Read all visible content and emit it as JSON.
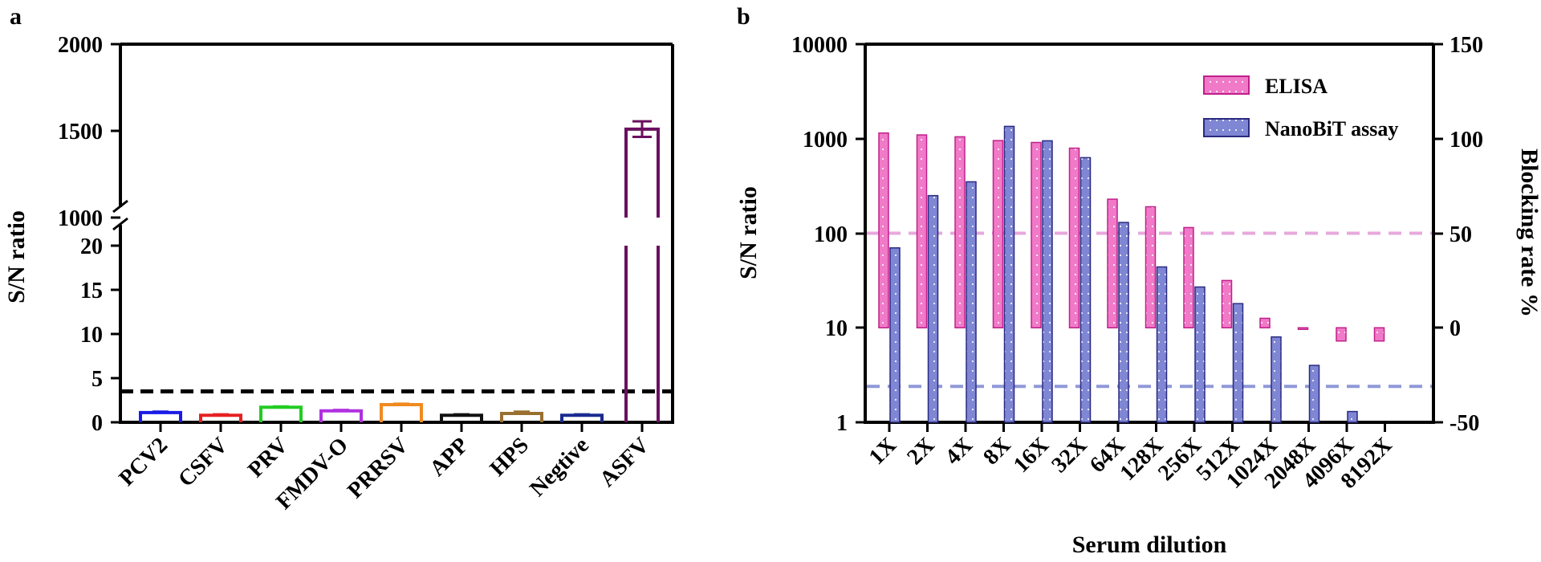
{
  "chart_data": [
    {
      "panel": "a",
      "type": "bar",
      "ylabel": "S/N ratio",
      "broken_axis": true,
      "y_segments": [
        {
          "range": [
            0,
            20
          ],
          "ticks": [
            "0",
            "5",
            "10",
            "15",
            "20"
          ]
        },
        {
          "range": [
            1000,
            2000
          ],
          "ticks": [
            "1000",
            "1500",
            "2000"
          ]
        }
      ],
      "cutoff_line": 3.5,
      "categories": [
        "PCV2",
        "CSFV",
        "PRV",
        "FMDV-O",
        "PRRSV",
        "APP",
        "HPS",
        "Negtive",
        "ASFV"
      ],
      "values": [
        1.1,
        0.8,
        1.7,
        1.3,
        2.0,
        0.8,
        1.0,
        0.8,
        1510
      ],
      "errors": [
        0.1,
        0.1,
        0.1,
        0.1,
        0.1,
        0.1,
        0.2,
        0.1,
        45
      ],
      "colors": [
        "#1a1ae6",
        "#e62020",
        "#22cc22",
        "#b030e0",
        "#f08a20",
        "#111111",
        "#9a7030",
        "#1a2a90",
        "#6a1060"
      ]
    },
    {
      "panel": "b",
      "type": "bar",
      "xlabel": "Serum dilution",
      "ylabel": "S/N ratio",
      "y2label": "Blocking rate %",
      "yscale": "log",
      "ylim": [
        1,
        10000
      ],
      "yticks": [
        "1",
        "10",
        "100",
        "1000",
        "10000"
      ],
      "y2lim": [
        -50,
        150
      ],
      "y2ticks": [
        "-50",
        "0",
        "50",
        "100",
        "150"
      ],
      "categories": [
        "1X",
        "2X",
        "4X",
        "8X",
        "16X",
        "32X",
        "64X",
        "128X",
        "256X",
        "512X",
        "1024X",
        "2048X",
        "4096X",
        "8192X"
      ],
      "series": [
        {
          "name": "ELISA",
          "axis": "right",
          "color": "#f07ac8",
          "values": [
            103,
            102,
            101,
            99,
            98,
            95,
            68,
            64,
            53,
            25,
            5,
            0,
            -7,
            -7
          ]
        },
        {
          "name": "NanoBiT assay",
          "axis": "left",
          "color": "#7f86d4",
          "values": [
            70,
            250,
            350,
            1350,
            950,
            630,
            130,
            44,
            27,
            18,
            8,
            4,
            1.3,
            null
          ]
        }
      ],
      "threshold_lines": [
        {
          "axis": "right",
          "value": 50,
          "color": "#e8a8dc"
        },
        {
          "axis": "right",
          "value": -31,
          "color": "#9098d8"
        }
      ]
    }
  ],
  "panel_a": {
    "letter": "a",
    "ylabel": "S/N ratio",
    "upper_ticks": [
      "2000",
      "1500",
      "1000"
    ],
    "lower_ticks": [
      "20",
      "15",
      "10",
      "5",
      "0"
    ]
  },
  "panel_b": {
    "letter": "b",
    "ylabel": "S/N ratio",
    "y2label": "Blocking rate %",
    "xlabel": "Serum dilution",
    "left_ticks": [
      "10000",
      "1000",
      "100",
      "10",
      "1"
    ],
    "right_ticks": [
      "150",
      "100",
      "50",
      "0",
      "-50"
    ],
    "legend": [
      {
        "label": "ELISA"
      },
      {
        "label": "NanoBiT assay"
      }
    ]
  }
}
